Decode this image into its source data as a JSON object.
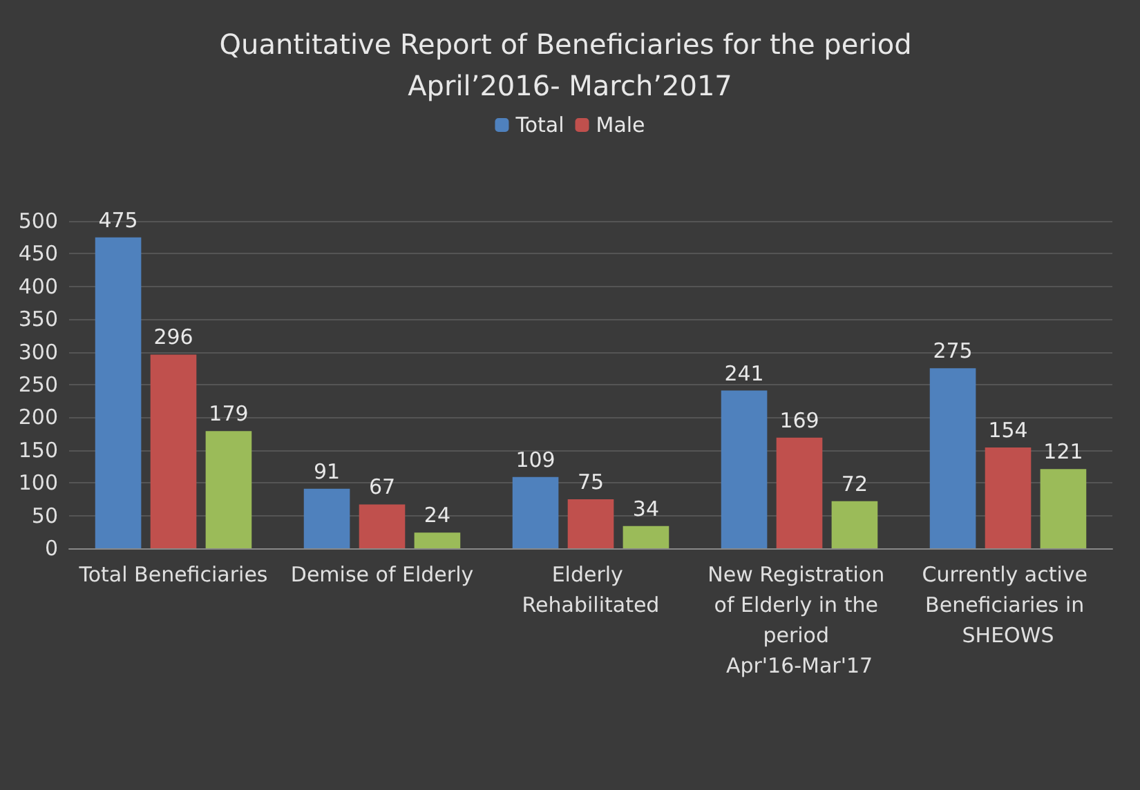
{
  "chart_data": {
    "type": "bar",
    "title": "Quantitative Report of Beneficiaries for the period April’2016- March’2017",
    "categories": [
      "Total Beneficiaries",
      "Demise of Elderly",
      "Elderly Rehabilitated",
      "New Registration of Elderly in the period Apr'16-Mar'17",
      "Currently active Beneficiaries in SHEOWS"
    ],
    "series": [
      {
        "name": "Total",
        "color": "#4f81bd",
        "values": [
          475,
          91,
          109,
          241,
          275
        ]
      },
      {
        "name": "Male",
        "color": "#c0504d",
        "values": [
          296,
          67,
          75,
          169,
          154
        ]
      },
      {
        "color": "#9bbb59",
        "values": [
          179,
          24,
          34,
          72,
          121
        ]
      }
    ],
    "ylim": [
      0,
      500
    ],
    "yticks": [
      0,
      50,
      100,
      150,
      200,
      250,
      300,
      350,
      400,
      450,
      500
    ],
    "grid": "y",
    "legend": "top",
    "data_labels": true
  }
}
